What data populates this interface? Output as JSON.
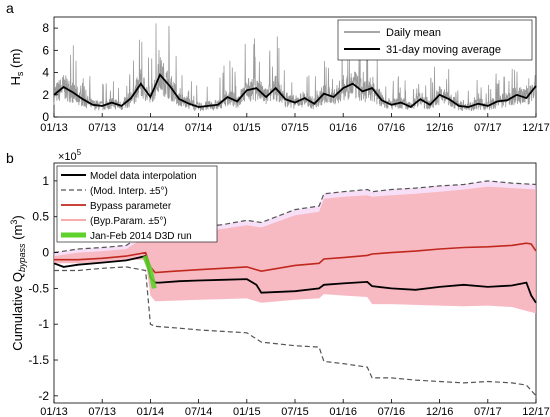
{
  "chart_data": [
    {
      "type": "line",
      "panel_label": "a",
      "ylabel_main": "H",
      "ylabel_sub": "s",
      "ylabel_unit": " (m)",
      "ylim": [
        0,
        9
      ],
      "y_ticks": [
        0,
        2,
        4,
        6,
        8
      ],
      "x_tick_labels": [
        "01/13",
        "07/13",
        "01/14",
        "07/14",
        "01/15",
        "07/15",
        "01/16",
        "07/16",
        "12/16",
        "07/17",
        "12/17"
      ],
      "legend_position": "top-right",
      "legend": [
        "Daily mean",
        "31-day moving average"
      ],
      "colors": {
        "daily": "#9a9a9a",
        "moving": "#000000"
      },
      "series": [
        {
          "name": "31-day moving average",
          "x": [
            0,
            0.2,
            0.4,
            0.6,
            0.8,
            1,
            1.2,
            1.4,
            1.6,
            1.8,
            2,
            2.2,
            2.4,
            2.6,
            2.8,
            3,
            3.2,
            3.4,
            3.6,
            3.8,
            4,
            4.2,
            4.4,
            4.6,
            4.8,
            5,
            5.2,
            5.4,
            5.6,
            5.8,
            6,
            6.2,
            6.4,
            6.6,
            6.8,
            7,
            7.2,
            7.4,
            7.6,
            7.8,
            8,
            8.2,
            8.4,
            8.6,
            8.8,
            9,
            9.2,
            9.4,
            9.6,
            9.8,
            10
          ],
          "y": [
            2.0,
            2.7,
            2.2,
            1.6,
            1.1,
            1.0,
            1.3,
            1.0,
            1.7,
            3.0,
            1.8,
            3.8,
            2.8,
            1.6,
            1.2,
            0.9,
            1.0,
            1.1,
            1.8,
            1.4,
            2.4,
            2.6,
            1.8,
            2.6,
            1.6,
            1.3,
            1.7,
            1.2,
            2.1,
            1.8,
            2.6,
            3.0,
            2.3,
            2.6,
            1.5,
            1.1,
            1.3,
            0.9,
            1.6,
            1.1,
            2.0,
            1.6,
            1.0,
            0.9,
            1.2,
            1.0,
            1.4,
            1.5,
            2.0,
            1.7,
            2.8
          ]
        }
      ]
    },
    {
      "type": "line",
      "panel_label": "b",
      "exponent_base": "×10",
      "exponent": "5",
      "ylabel_main": "Cumulative Q",
      "ylabel_sub": "bypass",
      "ylabel_unit": " (m",
      "ylabel_sup": "3",
      "ylabel_close": ")",
      "ylim": [
        -2.1,
        1.25
      ],
      "y_ticks": [
        -2,
        -1.5,
        -1,
        -0.5,
        0,
        0.5,
        1
      ],
      "y_tick_labels": [
        "-2",
        "-1.5",
        "-1",
        "-0.5",
        "0",
        "0.5",
        "1"
      ],
      "x_tick_labels": [
        "01/13",
        "07/13",
        "01/14",
        "07/14",
        "01/15",
        "07/15",
        "01/16",
        "07/16",
        "12/16",
        "07/17",
        "12/17"
      ],
      "legend_position": "top-left",
      "legend": [
        "Model data interpolation",
        "(Mod. Interp. ±5°)",
        "Bypass parameter",
        "(Byp.Param. ±5°)",
        "Jan-Feb 2014 D3D run"
      ],
      "colors": {
        "model": "#000000",
        "mod_band": "#555555",
        "bypass": "#c0281e",
        "byp_band": "#f7a0a0",
        "d3d": "#5ed22a"
      },
      "series": [
        {
          "name": "Model data interpolation",
          "x": [
            0,
            0.2,
            0.5,
            1.0,
            1.5,
            1.9,
            2.0,
            2.1,
            2.2,
            2.6,
            3.0,
            3.5,
            4.0,
            4.2,
            4.3,
            5.0,
            5.5,
            5.6,
            6.0,
            6.5,
            6.6,
            7.0,
            7.5,
            8.0,
            8.5,
            9.0,
            9.5,
            9.8,
            9.9,
            10
          ],
          "y": [
            -0.15,
            -0.2,
            -0.17,
            -0.14,
            -0.11,
            -0.05,
            -0.35,
            -0.42,
            -0.42,
            -0.4,
            -0.39,
            -0.38,
            -0.37,
            -0.45,
            -0.56,
            -0.54,
            -0.5,
            -0.45,
            -0.43,
            -0.41,
            -0.47,
            -0.5,
            -0.52,
            -0.48,
            -0.45,
            -0.48,
            -0.46,
            -0.42,
            -0.6,
            -0.7
          ]
        },
        {
          "name": "Bypass parameter",
          "x": [
            0,
            0.5,
            1.0,
            1.5,
            1.9,
            2.0,
            2.1,
            2.5,
            3.0,
            3.5,
            4.0,
            4.3,
            5.0,
            5.5,
            5.6,
            6.0,
            6.5,
            6.6,
            7.0,
            7.5,
            8.0,
            8.5,
            9.0,
            9.5,
            9.8,
            9.9,
            10
          ],
          "y": [
            -0.1,
            -0.1,
            -0.08,
            -0.05,
            0.0,
            -0.2,
            -0.28,
            -0.26,
            -0.24,
            -0.22,
            -0.2,
            -0.26,
            -0.18,
            -0.15,
            -0.09,
            -0.07,
            -0.04,
            -0.02,
            0.0,
            0.02,
            0.05,
            0.07,
            0.08,
            0.1,
            0.13,
            0.12,
            0.02
          ]
        },
        {
          "name": "(Mod. Interp. ±5°) upper",
          "x": [
            0,
            0.5,
            1.0,
            1.5,
            1.9,
            2.0,
            2.5,
            3.0,
            3.5,
            4.0,
            4.3,
            5.0,
            5.5,
            5.6,
            6.0,
            6.5,
            6.6,
            7.0,
            7.5,
            8.0,
            8.5,
            9.0,
            9.5,
            10
          ],
          "y": [
            0.0,
            0.05,
            0.07,
            0.1,
            0.28,
            0.28,
            0.33,
            0.35,
            0.39,
            0.45,
            0.42,
            0.6,
            0.65,
            0.82,
            0.85,
            0.88,
            0.85,
            0.88,
            0.9,
            0.93,
            0.95,
            1.0,
            0.97,
            0.95
          ]
        },
        {
          "name": "(Mod. Interp. ±5°) lower",
          "x": [
            0,
            0.5,
            1.0,
            1.5,
            1.9,
            2.0,
            2.1,
            2.5,
            3.0,
            3.5,
            4.0,
            4.3,
            5.0,
            5.5,
            5.6,
            6.0,
            6.5,
            6.6,
            7.0,
            7.5,
            8.0,
            8.5,
            9.0,
            9.5,
            9.8,
            10
          ],
          "y": [
            -0.25,
            -0.25,
            -0.22,
            -0.2,
            -0.25,
            -1.0,
            -1.03,
            -1.05,
            -1.08,
            -1.1,
            -1.12,
            -1.25,
            -1.3,
            -1.32,
            -1.52,
            -1.55,
            -1.6,
            -1.75,
            -1.75,
            -1.78,
            -1.8,
            -1.82,
            -1.8,
            -1.82,
            -1.85,
            -2.0
          ]
        },
        {
          "name": "(Byp.Param. ±5°) upper",
          "x": [
            0,
            0.5,
            1.0,
            1.5,
            1.9,
            2.0,
            2.5,
            3.0,
            3.5,
            4.0,
            4.3,
            5.0,
            5.5,
            5.6,
            6.0,
            6.5,
            6.6,
            7.0,
            7.5,
            8.0,
            8.5,
            9.0,
            9.5,
            10
          ],
          "y": [
            -0.05,
            0.0,
            0.02,
            0.05,
            0.22,
            0.23,
            0.27,
            0.3,
            0.33,
            0.38,
            0.35,
            0.52,
            0.57,
            0.75,
            0.78,
            0.8,
            0.78,
            0.8,
            0.82,
            0.85,
            0.88,
            0.92,
            0.9,
            0.88
          ]
        },
        {
          "name": "(Byp.Param. ±5°) lower",
          "x": [
            0,
            0.5,
            1.0,
            1.5,
            1.9,
            2.0,
            2.1,
            2.5,
            3.0,
            3.5,
            4.0,
            4.3,
            5.0,
            5.5,
            5.6,
            6.0,
            6.5,
            6.6,
            7.0,
            7.5,
            8.0,
            8.5,
            9.0,
            9.5,
            10
          ],
          "y": [
            -0.15,
            -0.15,
            -0.13,
            -0.1,
            -0.1,
            -0.6,
            -0.68,
            -0.67,
            -0.66,
            -0.65,
            -0.64,
            -0.7,
            -0.66,
            -0.64,
            -0.58,
            -0.6,
            -0.62,
            -0.72,
            -0.72,
            -0.73,
            -0.74,
            -0.75,
            -0.74,
            -0.76,
            -0.85
          ]
        },
        {
          "name": "Jan-Feb 2014 D3D run",
          "x": [
            1.88,
            2.0,
            2.08
          ],
          "y": [
            -0.05,
            -0.25,
            -0.5
          ]
        }
      ]
    }
  ]
}
